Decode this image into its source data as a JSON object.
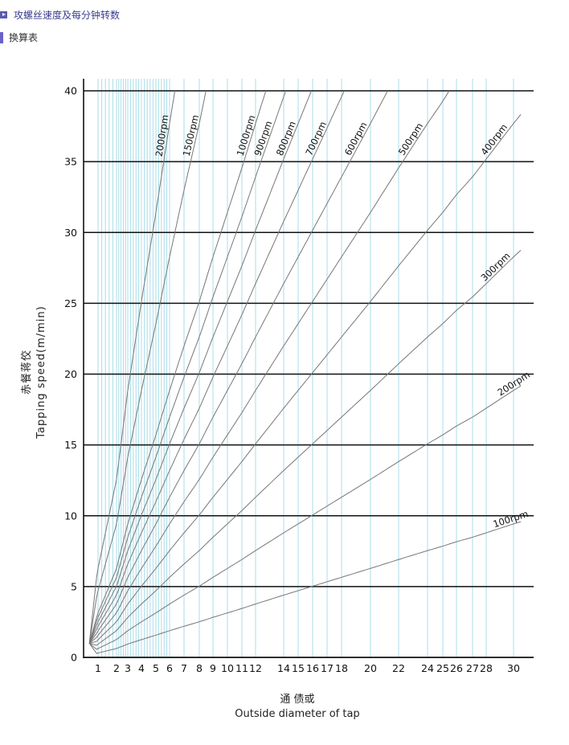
{
  "header": {
    "title_line1": "攻螺丝速度及每分钟转数",
    "title_line2": "换算表"
  },
  "labels": {
    "y_cn": "赤餐蒋佼",
    "y_en": "Tapping speed(m/min)",
    "x_cn": "通 债或",
    "x_en": "Outside diameter of tap"
  },
  "colors": {
    "header_icon": "#5b5bb0",
    "header_bar": "#6a62c8",
    "header_text": "#3b3b8f",
    "vertical_grid": "#a9dce8",
    "horizontal_grid": "#111111",
    "rpm_line": "#777777"
  },
  "chart_data": {
    "type": "line",
    "xlabel": "Outside diameter of tap",
    "ylabel": "Tapping speed(m/min)",
    "xlim": [
      0,
      30.5
    ],
    "ylim": [
      0,
      40
    ],
    "x_ticks": [
      1,
      2,
      3,
      4,
      5,
      6,
      7,
      8,
      9,
      10,
      11,
      12,
      14,
      15,
      16,
      17,
      18,
      20,
      22,
      24,
      25,
      26,
      27,
      28,
      30
    ],
    "y_ticks": [
      0,
      5,
      10,
      15,
      20,
      25,
      30,
      35,
      40
    ],
    "grid": "vertical light blue lines at each tick and fine steps below 6; black horizontal lines every 5 m/min",
    "series": [
      {
        "name": "2000rpm",
        "rpm": 2000
      },
      {
        "name": "1500rpm",
        "rpm": 1500
      },
      {
        "name": "1000rpm",
        "rpm": 1000
      },
      {
        "name": "900rpm",
        "rpm": 900
      },
      {
        "name": "800rpm",
        "rpm": 800
      },
      {
        "name": "700rpm",
        "rpm": 700
      },
      {
        "name": "600rpm",
        "rpm": 600
      },
      {
        "name": "500rpm",
        "rpm": 500
      },
      {
        "name": "400rpm",
        "rpm": 400
      },
      {
        "name": "300rpm",
        "rpm": 300
      },
      {
        "name": "200rpm",
        "rpm": 200
      },
      {
        "name": "100rpm",
        "rpm": 100
      }
    ]
  }
}
